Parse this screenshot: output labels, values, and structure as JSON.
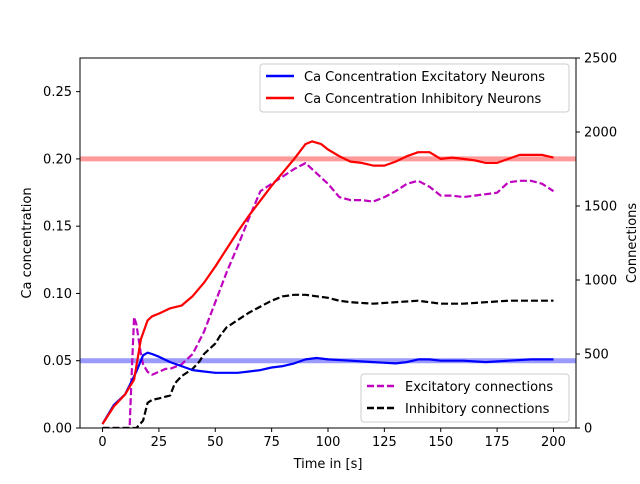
{
  "chart_data": {
    "type": "line",
    "xlabel": "Time in [s]",
    "ylabel_left": "Ca concentration",
    "ylabel_right": "Connections",
    "xlim": [
      -10,
      210
    ],
    "ylim_left": [
      0,
      0.275
    ],
    "ylim_right": [
      0,
      2500
    ],
    "xticks": [
      0,
      25,
      50,
      75,
      100,
      125,
      150,
      175,
      200
    ],
    "xtick_labels": [
      "0",
      "25",
      "50",
      "75",
      "100",
      "125",
      "150",
      "175",
      "200"
    ],
    "yticks_left": [
      0,
      0.05,
      0.1,
      0.15,
      0.2,
      0.25
    ],
    "ytick_labels_left": [
      "0.00",
      "0.05",
      "0.10",
      "0.15",
      "0.20",
      "0.25"
    ],
    "yticks_right": [
      0,
      500,
      1000,
      1500,
      2000,
      2500
    ],
    "ytick_labels_right": [
      "0",
      "500",
      "1000",
      "1500",
      "2000",
      "2500"
    ],
    "hlines": [
      {
        "y": 0.2,
        "axis": "left",
        "color": "#ff9a9a"
      },
      {
        "y": 0.05,
        "axis": "left",
        "color": "#9a9aff"
      }
    ],
    "legend_top": {
      "placement": "upper-right",
      "entries": [
        {
          "name": "Ca Concentration Excitatory Neurons",
          "color": "#0000ff",
          "style": "solid"
        },
        {
          "name": "Ca Concentration Inhibitory Neurons",
          "color": "#ff0000",
          "style": "solid"
        }
      ]
    },
    "legend_bottom": {
      "placement": "lower-right",
      "entries": [
        {
          "name": "Excitatory connections",
          "color": "#bf00bf",
          "style": "dashed"
        },
        {
          "name": "Inhibitory connections",
          "color": "#000000",
          "style": "dashed"
        }
      ]
    },
    "series": [
      {
        "name": "Ca Concentration Excitatory Neurons",
        "axis": "left",
        "color": "#0000ff",
        "style": "solid",
        "x": [
          0,
          5,
          10,
          15,
          18,
          20,
          22,
          25,
          30,
          35,
          40,
          45,
          50,
          55,
          60,
          65,
          70,
          75,
          80,
          85,
          90,
          95,
          100,
          110,
          120,
          130,
          135,
          140,
          145,
          150,
          160,
          170,
          180,
          190,
          200
        ],
        "y": [
          0.003,
          0.017,
          0.025,
          0.042,
          0.054,
          0.056,
          0.055,
          0.053,
          0.049,
          0.046,
          0.043,
          0.042,
          0.041,
          0.041,
          0.041,
          0.042,
          0.043,
          0.045,
          0.046,
          0.048,
          0.051,
          0.052,
          0.051,
          0.05,
          0.049,
          0.048,
          0.049,
          0.051,
          0.051,
          0.05,
          0.05,
          0.049,
          0.05,
          0.051,
          0.051
        ]
      },
      {
        "name": "Ca Concentration Inhibitory Neurons",
        "axis": "left",
        "color": "#ff0000",
        "style": "solid",
        "x": [
          0,
          5,
          10,
          14,
          17,
          20,
          22,
          25,
          30,
          35,
          40,
          45,
          50,
          55,
          60,
          65,
          70,
          75,
          80,
          85,
          90,
          93,
          97,
          100,
          105,
          110,
          115,
          120,
          125,
          130,
          135,
          140,
          145,
          150,
          155,
          160,
          165,
          170,
          175,
          180,
          185,
          190,
          195,
          200
        ],
        "y": [
          0.003,
          0.016,
          0.025,
          0.036,
          0.066,
          0.08,
          0.083,
          0.085,
          0.089,
          0.091,
          0.098,
          0.108,
          0.12,
          0.133,
          0.146,
          0.158,
          0.169,
          0.18,
          0.19,
          0.2,
          0.211,
          0.213,
          0.211,
          0.207,
          0.202,
          0.198,
          0.197,
          0.195,
          0.195,
          0.198,
          0.202,
          0.205,
          0.205,
          0.2,
          0.201,
          0.2,
          0.199,
          0.197,
          0.197,
          0.2,
          0.203,
          0.203,
          0.203,
          0.201
        ]
      },
      {
        "name": "Excitatory connections",
        "axis": "right",
        "color": "#bf00bf",
        "style": "dashed",
        "x": [
          0,
          5,
          10,
          12,
          13,
          14,
          15,
          17,
          18,
          20,
          22,
          25,
          28,
          30,
          35,
          40,
          45,
          50,
          55,
          60,
          65,
          70,
          75,
          80,
          85,
          90,
          95,
          100,
          105,
          110,
          115,
          120,
          125,
          130,
          135,
          140,
          145,
          150,
          155,
          160,
          165,
          170,
          175,
          180,
          185,
          190,
          195,
          200
        ],
        "y": [
          0,
          0,
          0,
          0,
          400,
          750,
          700,
          500,
          430,
          380,
          360,
          380,
          400,
          400,
          430,
          500,
          650,
          850,
          1050,
          1230,
          1420,
          1600,
          1650,
          1700,
          1750,
          1790,
          1720,
          1650,
          1560,
          1540,
          1540,
          1530,
          1560,
          1600,
          1650,
          1670,
          1630,
          1570,
          1570,
          1560,
          1570,
          1580,
          1590,
          1660,
          1670,
          1670,
          1650,
          1600
        ]
      },
      {
        "name": "Inhibitory connections",
        "axis": "right",
        "color": "#000000",
        "style": "dashed",
        "x": [
          0,
          5,
          10,
          15,
          18,
          20,
          22,
          25,
          30,
          32,
          35,
          40,
          43,
          45,
          50,
          52,
          55,
          60,
          65,
          70,
          75,
          80,
          85,
          90,
          95,
          100,
          105,
          110,
          120,
          130,
          140,
          150,
          160,
          170,
          180,
          190,
          200
        ],
        "y": [
          0,
          0,
          0,
          0,
          50,
          170,
          190,
          200,
          220,
          300,
          350,
          400,
          450,
          500,
          570,
          620,
          680,
          730,
          780,
          820,
          860,
          890,
          900,
          900,
          890,
          880,
          860,
          850,
          840,
          850,
          860,
          840,
          840,
          850,
          860,
          860,
          860
        ]
      }
    ]
  }
}
